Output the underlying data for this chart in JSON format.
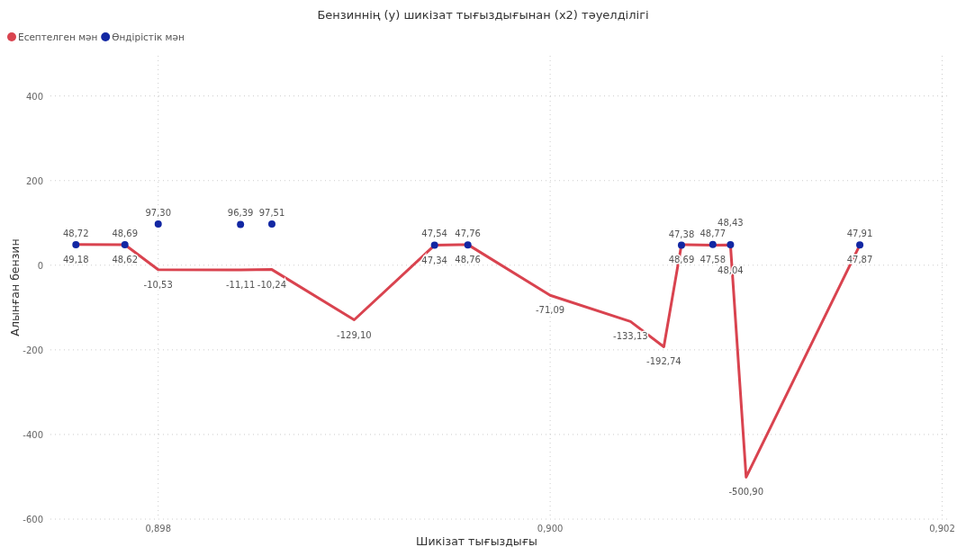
{
  "chart_data": {
    "type": "line",
    "title": "Бензиннің (y) шикізат тығыздығынан (x2) тәуелділігі",
    "xlabel": "Шикізат тығыздығы",
    "ylabel": "Алынған бензин",
    "x": [
      0.89758,
      0.89783,
      0.898,
      0.89842,
      0.89858,
      0.899,
      0.89941,
      0.89958,
      0.9,
      0.90041,
      0.90058,
      0.90067,
      0.90083,
      0.90092,
      0.901,
      0.90158
    ],
    "series": [
      {
        "name": "Есептелген мән",
        "color": "#d9434f",
        "values": [
          49.18,
          48.62,
          -10.53,
          -11.11,
          -10.24,
          -129.1,
          47.34,
          48.76,
          -71.09,
          -133.13,
          -192.74,
          48.69,
          47.58,
          48.04,
          -500.9,
          47.87
        ],
        "value_labels": [
          "49,18",
          "48,62",
          "-10,53",
          "-11,11",
          "-10,24",
          "-129,10",
          "47,34",
          "48,76",
          "-71,09",
          "-133,13",
          "-192,74",
          "48,69",
          "47,58",
          "48,04",
          "-500,90",
          "47,87"
        ]
      },
      {
        "name": "Өндірістік мән",
        "type": "scatter",
        "color": "#1227a3",
        "marker": "circle",
        "values": [
          48.72,
          48.69,
          97.3,
          96.39,
          97.51,
          null,
          47.54,
          47.76,
          null,
          null,
          null,
          47.38,
          48.77,
          48.43,
          null,
          47.91
        ],
        "value_labels": [
          "48,72",
          "48,69",
          "97,30",
          "96,39",
          "97,51",
          null,
          "47,54",
          "47,76",
          null,
          null,
          null,
          "47,38",
          "48,77",
          "48,43",
          null,
          "47,91"
        ]
      }
    ],
    "xlim": [
      0.89745,
      0.90203
    ],
    "xticks": [
      {
        "value": 0.898,
        "label": "0,898"
      },
      {
        "value": 0.9,
        "label": "0,900"
      },
      {
        "value": 0.902,
        "label": "0,902"
      }
    ],
    "ylim": [
      -600,
      495
    ],
    "yticks": [
      -600,
      -400,
      -200,
      0,
      200,
      400
    ],
    "grid": true,
    "legend": "top left",
    "marker": "none",
    "line_style": "solid"
  }
}
